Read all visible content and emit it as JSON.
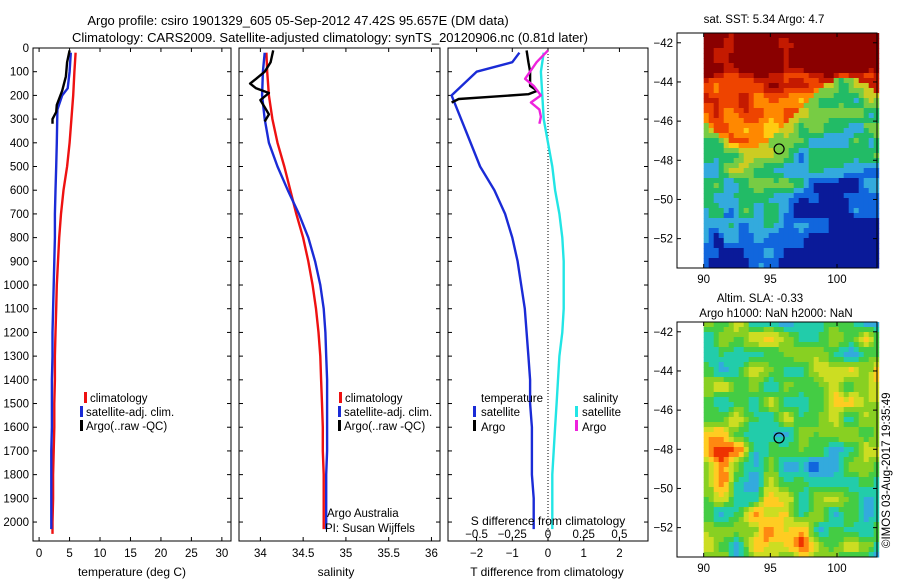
{
  "figure": {
    "title_line1": "Argo profile: csiro 1901329_605 05-Sep-2012 47.42S 95.657E (DM data)",
    "title_line2": "Climatology: CARS2009. Satellite-adjusted climatology: synTS_20120906.nc (0.81d later)",
    "credit": "Argo Australia",
    "pi": "PI: Susan Wijffels",
    "timestamp": "©IMOS 03-Aug-2017 19:35:49"
  },
  "colors": {
    "climatology": "#ee1111",
    "satellite": "#1a2bd6",
    "argo": "#000000",
    "satellite_salinity": "#22e5e5",
    "argo_salinity": "#ee22dd"
  },
  "chart_data": [
    {
      "type": "line",
      "xlabel": "temperature (deg C)",
      "ylabel": "",
      "xlim": [
        -1,
        31.5
      ],
      "ylim": [
        2080,
        0
      ],
      "xticks": [
        0,
        5,
        10,
        15,
        20,
        25,
        30
      ],
      "yticks": [
        0,
        100,
        200,
        300,
        400,
        500,
        600,
        700,
        800,
        900,
        1000,
        1100,
        1200,
        1300,
        1400,
        1500,
        1600,
        1700,
        1800,
        1900,
        2000
      ],
      "legend": [
        "climatology",
        "satellite-adj. clim.",
        "Argo(..raw -QC)"
      ],
      "series": [
        {
          "name": "climatology",
          "color_key": "climatology",
          "x": [
            6.0,
            5.8,
            5.6,
            5.3,
            5.0,
            4.6,
            4.0,
            3.6,
            3.3,
            3.1,
            2.9,
            2.8,
            2.7,
            2.6,
            2.6,
            2.5,
            2.5,
            2.4,
            2.3,
            2.3,
            2.2,
            2.2
          ],
          "y": [
            20,
            100,
            200,
            300,
            400,
            500,
            600,
            700,
            800,
            900,
            1000,
            1100,
            1200,
            1300,
            1400,
            1500,
            1600,
            1700,
            1800,
            1900,
            2000,
            2050
          ]
        },
        {
          "name": "satellite-adj. clim.",
          "color_key": "satellite",
          "x": [
            5.2,
            5.0,
            4.7,
            3.8,
            3.0,
            2.9,
            2.8,
            2.7,
            2.6,
            2.6,
            2.5,
            2.4,
            2.3,
            2.2,
            2.2,
            2.1,
            2.1,
            2.1,
            2.0,
            2.0,
            2.0
          ],
          "y": [
            20,
            100,
            170,
            200,
            260,
            400,
            500,
            600,
            700,
            800,
            900,
            1000,
            1100,
            1200,
            1300,
            1400,
            1500,
            1600,
            1700,
            1900,
            2030
          ]
        },
        {
          "name": "Argo(..raw -QC)",
          "color_key": "argo",
          "x": [
            5.0,
            4.6,
            4.4,
            3.8,
            2.9,
            2.8,
            2.2,
            2.2
          ],
          "y": [
            10,
            60,
            120,
            180,
            240,
            270,
            300,
            320
          ]
        }
      ]
    },
    {
      "type": "line",
      "xlabel": "salinity",
      "ylabel": "",
      "xlim": [
        33.75,
        36.1
      ],
      "ylim": [
        2080,
        0
      ],
      "xticks": [
        34,
        34.5,
        35,
        35.5,
        36
      ],
      "legend": [
        "climatology",
        "satellite-adj. clim.",
        "Argo(..raw -QC)"
      ],
      "series": [
        {
          "name": "climatology",
          "color_key": "climatology",
          "x": [
            34.07,
            34.08,
            34.1,
            34.14,
            34.2,
            34.28,
            34.35,
            34.42,
            34.5,
            34.56,
            34.61,
            34.65,
            34.68,
            34.7,
            34.71,
            34.72,
            34.73,
            34.73,
            34.74,
            34.74,
            34.74
          ],
          "y": [
            20,
            100,
            200,
            300,
            400,
            500,
            600,
            700,
            800,
            900,
            1000,
            1100,
            1200,
            1300,
            1400,
            1500,
            1600,
            1700,
            1800,
            1900,
            2030
          ]
        },
        {
          "name": "satellite-adj. clim.",
          "color_key": "satellite",
          "x": [
            34.05,
            34.03,
            34.02,
            34.05,
            34.1,
            34.2,
            34.32,
            34.45,
            34.56,
            34.64,
            34.7,
            34.74,
            34.76,
            34.77,
            34.78,
            34.78,
            34.78,
            34.78,
            34.77,
            34.77,
            34.77
          ],
          "y": [
            20,
            100,
            200,
            300,
            400,
            500,
            600,
            700,
            800,
            900,
            1000,
            1100,
            1200,
            1300,
            1400,
            1500,
            1600,
            1700,
            1800,
            1900,
            2030
          ]
        },
        {
          "name": "Argo(..raw -QC)",
          "color_key": "argo",
          "x": [
            34.15,
            34.12,
            34.05,
            33.95,
            33.88,
            33.95,
            34.1,
            34.0,
            34.05,
            34.1,
            34.05
          ],
          "y": [
            10,
            60,
            100,
            130,
            150,
            170,
            190,
            220,
            250,
            280,
            310
          ]
        }
      ]
    },
    {
      "type": "line",
      "xlabel": "T difference from climatology",
      "x2label": "S difference from climatology",
      "ylabel": "",
      "xlim": [
        -2.8,
        2.8
      ],
      "x2lim": [
        -0.7,
        0.7
      ],
      "ylim": [
        2080,
        0
      ],
      "xticks": [
        -2,
        -1,
        0,
        1,
        2
      ],
      "x2ticks": [
        -0.5,
        -0.25,
        0,
        0.25,
        0.5
      ],
      "legend_headers": [
        "temperature",
        "salinity"
      ],
      "legend": [
        "satellite",
        "Argo",
        "satellite",
        "Argo"
      ],
      "series": [
        {
          "name": "satellite",
          "group": "temperature",
          "axis": "x",
          "color_key": "satellite",
          "x": [
            -0.8,
            -1.0,
            -2.0,
            -2.7,
            -2.3,
            -1.9,
            -1.5,
            -1.2,
            -1.0,
            -0.85,
            -0.75,
            -0.65,
            -0.6,
            -0.55,
            -0.5,
            -0.5,
            -0.45,
            -0.45,
            -0.45,
            -0.4,
            -0.4
          ],
          "y": [
            20,
            60,
            100,
            200,
            350,
            500,
            600,
            700,
            800,
            900,
            1000,
            1100,
            1200,
            1300,
            1400,
            1500,
            1600,
            1700,
            1800,
            1900,
            2030
          ]
        },
        {
          "name": "Argo",
          "group": "temperature",
          "axis": "x",
          "color_key": "argo",
          "x": [
            -0.6,
            -0.55,
            -0.5,
            -0.5,
            -0.3,
            -0.55,
            -1.5,
            -2.5,
            -2.7
          ],
          "y": [
            10,
            60,
            100,
            160,
            180,
            195,
            205,
            215,
            230
          ]
        },
        {
          "name": "satellite",
          "group": "salinity",
          "axis": "x2",
          "color_key": "satellite_salinity",
          "x": [
            -0.03,
            -0.05,
            -0.04,
            -0.03,
            0.0,
            0.03,
            0.05,
            0.08,
            0.1,
            0.11,
            0.11,
            0.11,
            0.1,
            0.08,
            0.07,
            0.06,
            0.05,
            0.04,
            0.03,
            0.03,
            0.03
          ],
          "y": [
            20,
            100,
            200,
            300,
            400,
            500,
            600,
            700,
            800,
            900,
            1000,
            1100,
            1200,
            1300,
            1400,
            1500,
            1600,
            1700,
            1800,
            1900,
            2030
          ]
        },
        {
          "name": "Argo",
          "group": "salinity",
          "axis": "x2",
          "color_key": "argo_salinity",
          "x": [
            0.0,
            -0.08,
            -0.16,
            -0.1,
            -0.05,
            -0.12,
            -0.06,
            -0.05,
            -0.06
          ],
          "y": [
            10,
            60,
            130,
            160,
            200,
            230,
            260,
            290,
            320
          ]
        }
      ]
    },
    {
      "type": "heatmap",
      "title": "sat. SST: 5.34 Argo: 4.7",
      "xlim": [
        88,
        103
      ],
      "ylim": [
        -53.5,
        -41.5
      ],
      "xticks": [
        90,
        95,
        100
      ],
      "yticks": [
        -42,
        -44,
        -46,
        -48,
        -50,
        -52
      ],
      "marker": {
        "lon": 95.657,
        "lat": -47.42
      },
      "colors": [
        "#8a0000",
        "#c41a00",
        "#ee4400",
        "#ff8800",
        "#ffcc11",
        "#cccc22",
        "#77cc44",
        "#22bb66",
        "#33aadd",
        "#1166dd",
        "#0a1a99"
      ]
    },
    {
      "type": "heatmap",
      "title": "Altim. SLA: -0.33",
      "subtitle": "Argo h1000: NaN h2000: NaN",
      "xlim": [
        88,
        103
      ],
      "ylim": [
        -53.5,
        -41.5
      ],
      "xticks": [
        90,
        95,
        100
      ],
      "yticks": [
        -42,
        -44,
        -46,
        -48,
        -50,
        -52
      ],
      "marker": {
        "lon": 95.657,
        "lat": -47.42
      },
      "colors": [
        "#1166dd",
        "#33aadd",
        "#22ccaa",
        "#44cc44",
        "#88d022",
        "#ccdd22",
        "#ffcc22",
        "#ff8811",
        "#ee3300"
      ]
    }
  ]
}
